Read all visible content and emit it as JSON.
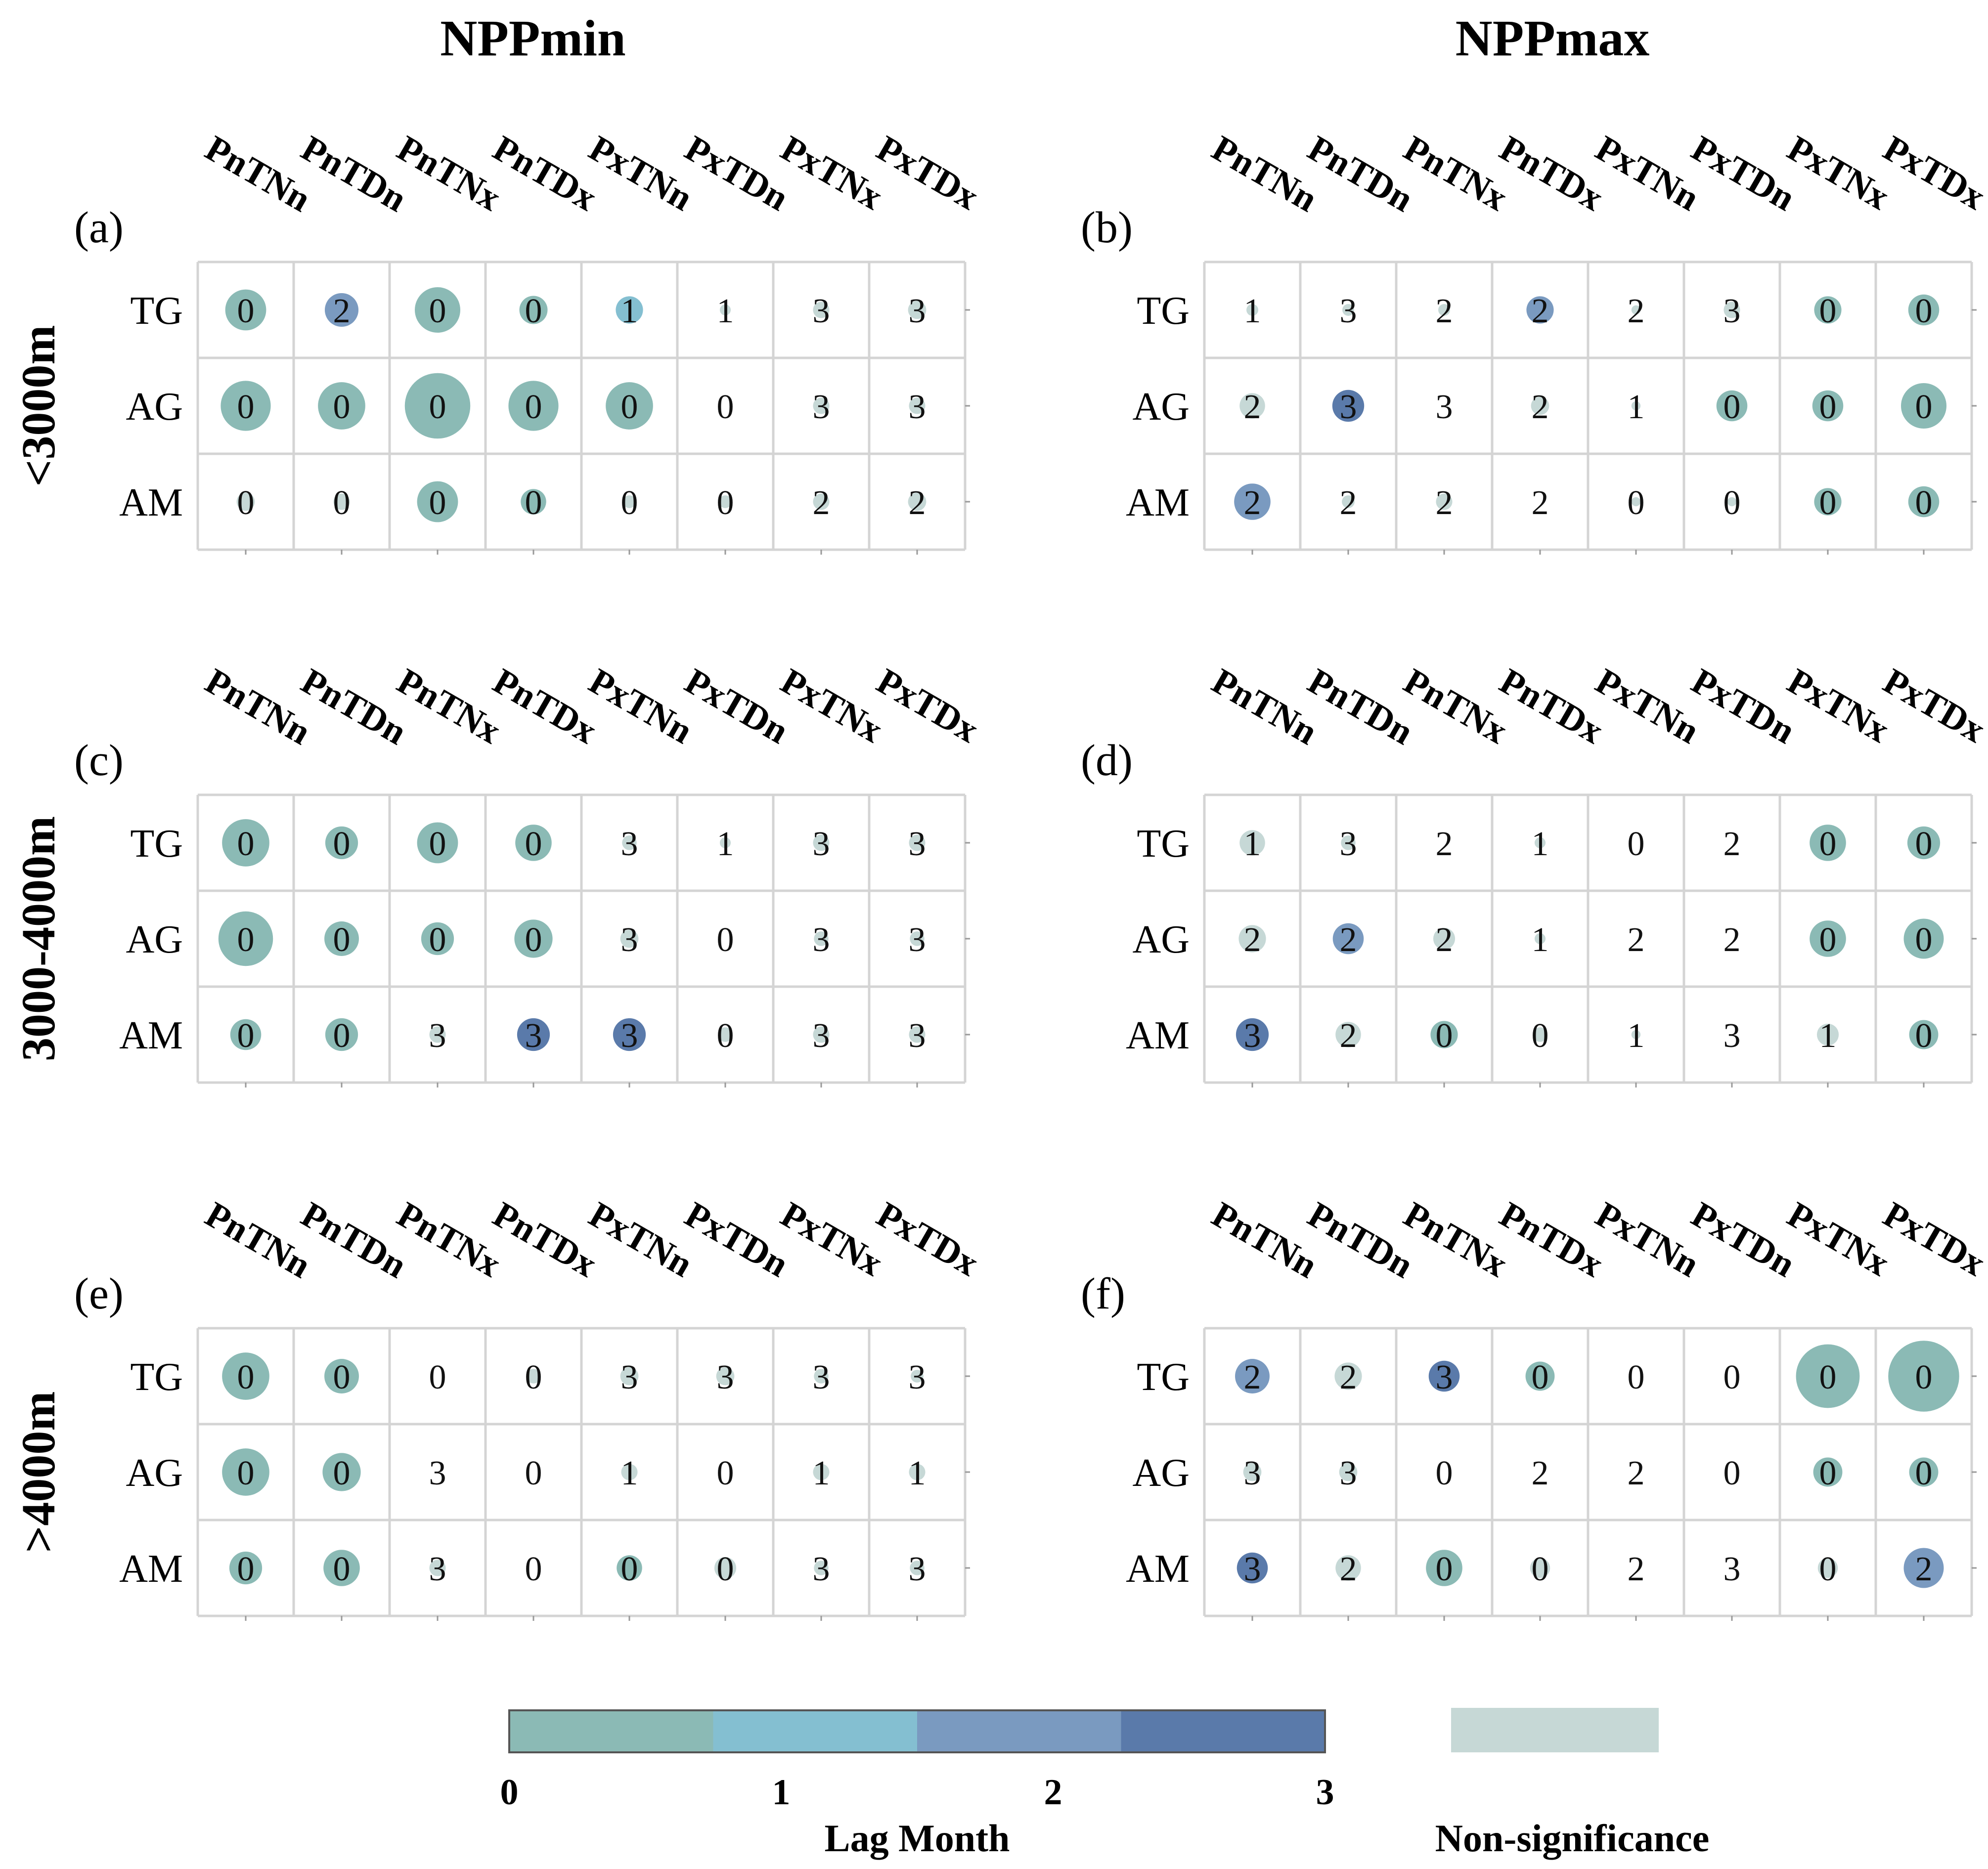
{
  "column_titles": [
    "NPPmin",
    "NPPmax"
  ],
  "row_titles": [
    "<3000m",
    "3000-4000m",
    ">4000m"
  ],
  "colors": {
    "lag_0": "#8bbab5",
    "lag_1": "#84bfd1",
    "lag_2": "#7a9ac0",
    "lag_3": "#5a7aaa",
    "non_significance": "#c6d8d6",
    "grid": "#d4d4d4"
  },
  "legend": {
    "ticks": [
      "0",
      "1",
      "2",
      "3"
    ],
    "title": "Lag Month",
    "non_significance_label": "Non-significance"
  },
  "chart_data": [
    {
      "type": "bubble-matrix",
      "panel": "(a)",
      "column_title": "NPPmin",
      "row_title": "<3000m",
      "columns": [
        "PnTNn",
        "PnTDn",
        "PnTNx",
        "PnTDx",
        "PxTNn",
        "PxTDn",
        "PxTNx",
        "PxTDx"
      ],
      "rows": [
        "TG",
        "AG",
        "AM"
      ],
      "lag": [
        [
          0,
          2,
          0,
          0,
          1,
          1,
          3,
          3
        ],
        [
          0,
          0,
          0,
          0,
          0,
          0,
          3,
          3
        ],
        [
          0,
          0,
          0,
          0,
          0,
          0,
          2,
          2
        ]
      ],
      "significant": [
        [
          1,
          1,
          1,
          1,
          1,
          0,
          0,
          0
        ],
        [
          1,
          1,
          1,
          1,
          1,
          0,
          0,
          0
        ],
        [
          0,
          0,
          1,
          1,
          0,
          0,
          0,
          0
        ]
      ],
      "magnitude": [
        [
          0.45,
          0.37,
          0.5,
          0.31,
          0.3,
          0.12,
          0.18,
          0.2
        ],
        [
          0.55,
          0.52,
          0.72,
          0.55,
          0.52,
          0.0,
          0.18,
          0.18
        ],
        [
          0.2,
          0.18,
          0.45,
          0.28,
          0.14,
          0.14,
          0.18,
          0.2
        ]
      ]
    },
    {
      "type": "bubble-matrix",
      "panel": "(b)",
      "column_title": "NPPmax",
      "row_title": "<3000m",
      "columns": [
        "PnTNn",
        "PnTDn",
        "PnTNx",
        "PnTDx",
        "PxTNn",
        "PxTDn",
        "PxTNx",
        "PxTDx"
      ],
      "rows": [
        "TG",
        "AG",
        "AM"
      ],
      "lag": [
        [
          1,
          3,
          2,
          2,
          2,
          3,
          0,
          0
        ],
        [
          2,
          3,
          3,
          2,
          1,
          0,
          0,
          0
        ],
        [
          2,
          2,
          2,
          2,
          0,
          0,
          0,
          0
        ]
      ],
      "significant": [
        [
          0,
          0,
          0,
          1,
          0,
          0,
          1,
          1
        ],
        [
          0,
          1,
          0,
          0,
          0,
          1,
          1,
          1
        ],
        [
          1,
          0,
          0,
          0,
          0,
          0,
          1,
          1
        ]
      ],
      "magnitude": [
        [
          0.13,
          0.13,
          0.13,
          0.3,
          0.1,
          0.18,
          0.3,
          0.34
        ],
        [
          0.28,
          0.35,
          0.0,
          0.2,
          0.1,
          0.34,
          0.34,
          0.5
        ],
        [
          0.4,
          0.14,
          0.18,
          0.0,
          0.1,
          0.1,
          0.3,
          0.34
        ]
      ]
    },
    {
      "type": "bubble-matrix",
      "panel": "(c)",
      "column_title": "NPPmin",
      "row_title": "3000-4000m",
      "columns": [
        "PnTNn",
        "PnTDn",
        "PnTNx",
        "PnTDx",
        "PxTNn",
        "PxTDn",
        "PxTNx",
        "PxTDx"
      ],
      "rows": [
        "TG",
        "AG",
        "AM"
      ],
      "lag": [
        [
          0,
          0,
          0,
          0,
          3,
          1,
          3,
          3
        ],
        [
          0,
          0,
          0,
          0,
          3,
          0,
          3,
          3
        ],
        [
          0,
          0,
          3,
          3,
          3,
          0,
          3,
          3
        ]
      ],
      "significant": [
        [
          1,
          1,
          1,
          1,
          0,
          0,
          0,
          0
        ],
        [
          1,
          1,
          1,
          1,
          0,
          0,
          0,
          0
        ],
        [
          1,
          1,
          0,
          1,
          1,
          0,
          0,
          0
        ]
      ],
      "magnitude": [
        [
          0.52,
          0.36,
          0.45,
          0.4,
          0.16,
          0.12,
          0.18,
          0.18
        ],
        [
          0.6,
          0.38,
          0.36,
          0.42,
          0.2,
          0.0,
          0.16,
          0.16
        ],
        [
          0.34,
          0.36,
          0.18,
          0.36,
          0.36,
          0.16,
          0.18,
          0.18
        ]
      ]
    },
    {
      "type": "bubble-matrix",
      "panel": "(d)",
      "column_title": "NPPmax",
      "row_title": "3000-4000m",
      "columns": [
        "PnTNn",
        "PnTDn",
        "PnTNx",
        "PnTDx",
        "PxTNn",
        "PxTDn",
        "PxTNx",
        "PxTDx"
      ],
      "rows": [
        "TG",
        "AG",
        "AM"
      ],
      "lag": [
        [
          1,
          3,
          2,
          1,
          0,
          2,
          0,
          0
        ],
        [
          2,
          2,
          2,
          1,
          2,
          2,
          0,
          0
        ],
        [
          3,
          2,
          0,
          0,
          1,
          3,
          1,
          0
        ]
      ],
      "significant": [
        [
          0,
          0,
          0,
          0,
          0,
          0,
          1,
          1
        ],
        [
          0,
          1,
          0,
          0,
          0,
          0,
          1,
          1
        ],
        [
          1,
          0,
          1,
          0,
          0,
          0,
          0,
          1
        ]
      ],
      "magnitude": [
        [
          0.28,
          0.16,
          0.0,
          0.12,
          0.0,
          0.0,
          0.4,
          0.36
        ],
        [
          0.3,
          0.34,
          0.24,
          0.12,
          0.0,
          0.0,
          0.4,
          0.44
        ],
        [
          0.36,
          0.28,
          0.3,
          0.16,
          0.1,
          0.0,
          0.24,
          0.32
        ]
      ]
    },
    {
      "type": "bubble-matrix",
      "panel": "(e)",
      "column_title": "NPPmin",
      "row_title": ">4000m",
      "columns": [
        "PnTNn",
        "PnTDn",
        "PnTNx",
        "PnTDx",
        "PxTNn",
        "PxTDn",
        "PxTNx",
        "PxTDx"
      ],
      "rows": [
        "TG",
        "AG",
        "AM"
      ],
      "lag": [
        [
          0,
          0,
          0,
          0,
          3,
          3,
          3,
          3
        ],
        [
          0,
          0,
          3,
          0,
          1,
          0,
          1,
          1
        ],
        [
          0,
          0,
          3,
          0,
          0,
          0,
          3,
          3
        ]
      ],
      "significant": [
        [
          1,
          1,
          0,
          0,
          0,
          0,
          0,
          0
        ],
        [
          1,
          1,
          0,
          0,
          0,
          0,
          0,
          0
        ],
        [
          1,
          1,
          0,
          0,
          1,
          0,
          0,
          0
        ]
      ],
      "magnitude": [
        [
          0.52,
          0.38,
          0.0,
          0.16,
          0.2,
          0.2,
          0.16,
          0.14
        ],
        [
          0.52,
          0.42,
          0.0,
          0.0,
          0.18,
          0.0,
          0.18,
          0.18
        ],
        [
          0.36,
          0.4,
          0.18,
          0.0,
          0.28,
          0.24,
          0.16,
          0.16
        ]
      ]
    },
    {
      "type": "bubble-matrix",
      "panel": "(f)",
      "column_title": "NPPmax",
      "row_title": ">4000m",
      "columns": [
        "PnTNn",
        "PnTDn",
        "PnTNx",
        "PnTDx",
        "PxTNn",
        "PxTDn",
        "PxTNx",
        "PxTDx"
      ],
      "rows": [
        "TG",
        "AG",
        "AM"
      ],
      "lag": [
        [
          2,
          2,
          3,
          0,
          0,
          0,
          0,
          0
        ],
        [
          3,
          3,
          0,
          2,
          2,
          0,
          0,
          0
        ],
        [
          3,
          2,
          0,
          0,
          2,
          3,
          0,
          2
        ]
      ],
      "significant": [
        [
          1,
          0,
          1,
          1,
          0,
          0,
          1,
          1
        ],
        [
          0,
          0,
          0,
          0,
          0,
          0,
          1,
          1
        ],
        [
          1,
          0,
          1,
          0,
          0,
          0,
          0,
          1
        ]
      ],
      "magnitude": [
        [
          0.38,
          0.3,
          0.34,
          0.32,
          0.0,
          0.0,
          0.7,
          0.78
        ],
        [
          0.2,
          0.2,
          0.0,
          0.0,
          0.0,
          0.0,
          0.32,
          0.32
        ],
        [
          0.34,
          0.28,
          0.4,
          0.22,
          0.0,
          0.0,
          0.22,
          0.44
        ]
      ]
    }
  ]
}
